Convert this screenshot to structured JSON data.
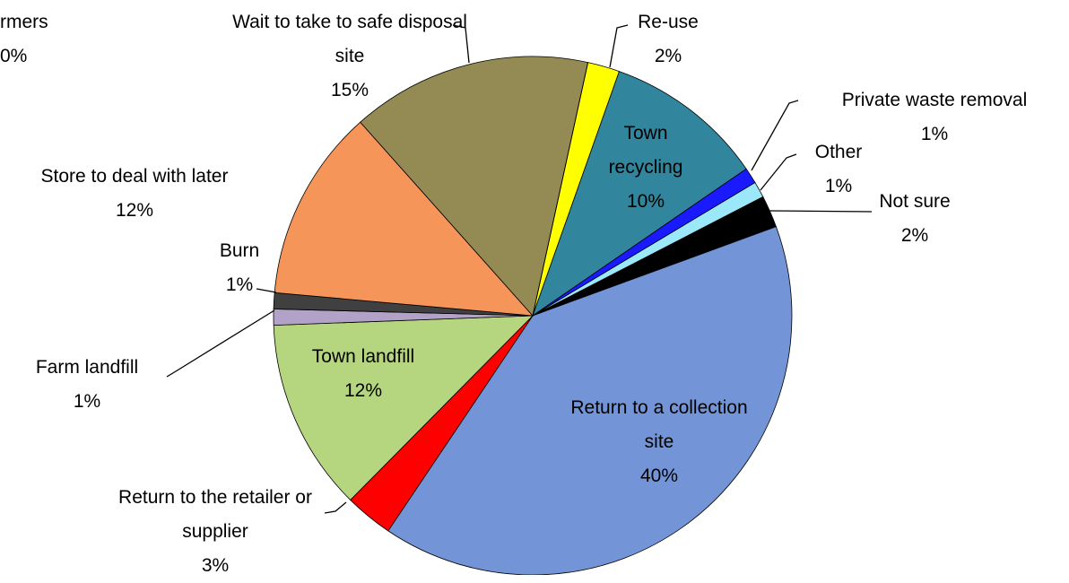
{
  "chart_data": {
    "type": "pie",
    "categories": [
      "Re-use",
      "Town recycling",
      "Private waste removal",
      "Other",
      "Not sure",
      "Return to a collection site",
      "Return to the retailer or supplier",
      "Town landfill",
      "Farm landfill",
      "Burn",
      "Store to deal with later",
      "Wait to take to safe disposal site",
      "rmers"
    ],
    "values": [
      2,
      10,
      1,
      1,
      2,
      40,
      3,
      12,
      1,
      1,
      12,
      15,
      0
    ],
    "value_labels": [
      "2%",
      "10%",
      "1%",
      "1%",
      "2%",
      "40%",
      "3%",
      "12%",
      "1%",
      "1%",
      "12%",
      "15%",
      "0%"
    ],
    "colors": [
      "#ffff00",
      "#31859c",
      "#1a1aff",
      "#9be8fa",
      "#000000",
      "#7394d6",
      "#ff0000",
      "#b5d57e",
      "#b3a2c7",
      "#404040",
      "#f5955a",
      "#948a54",
      "#c0504d"
    ]
  }
}
